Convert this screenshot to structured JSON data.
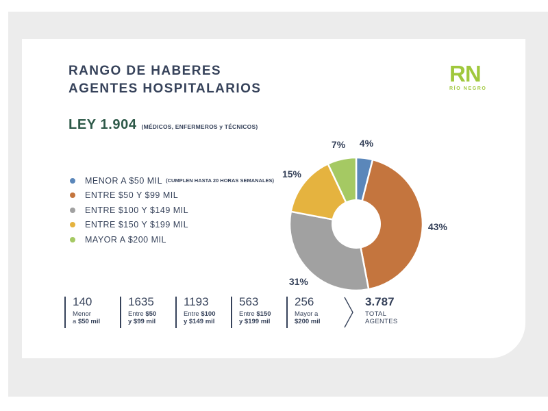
{
  "title": {
    "line1": "RANGO DE HABERES",
    "line2": "AGENTES HOSPITALARIOS"
  },
  "law": {
    "label": "LEY 1.904",
    "note": "(MÉDICOS, ENFERMEROS y TÉCNICOS)"
  },
  "logo": {
    "monogram": "RN",
    "caption": "RÍO NEGRO",
    "color": "#a0c83d"
  },
  "colors": {
    "navy_text": "#36425a",
    "law_green": "#2d5948",
    "panel_gray": "#ececec",
    "card_white": "#ffffff"
  },
  "legend": {
    "items": [
      {
        "label": "MENOR A $50 MIL",
        "note": "(CUMPLEN HASTA 20 HORAS SEMANALES)",
        "color": "#5b87ba"
      },
      {
        "label": "ENTRE $50 Y $99 MIL",
        "note": "",
        "color": "#c4753e"
      },
      {
        "label": "ENTRE $100 Y $149 MIL",
        "note": "",
        "color": "#a1a1a1"
      },
      {
        "label": "ENTRE $150 Y $199 MIL",
        "note": "",
        "color": "#e5b33f"
      },
      {
        "label": "MAYOR A $200 MIL",
        "note": "",
        "color": "#a5c963"
      }
    ]
  },
  "chart_data": {
    "type": "pie",
    "subtype": "donut",
    "title": "RANGO DE HABERES AGENTES HOSPITALARIOS — LEY 1.904",
    "categories": [
      "MENOR A $50 MIL",
      "ENTRE $50 Y $99 MIL",
      "ENTRE $100 Y $149 MIL",
      "ENTRE $150 Y $199 MIL",
      "MAYOR A $200 MIL"
    ],
    "values": [
      4,
      43,
      31,
      15,
      7
    ],
    "value_labels": [
      "4%",
      "43%",
      "31%",
      "15%",
      "7%"
    ],
    "counts": [
      140,
      1635,
      1193,
      563,
      256
    ],
    "total_agents": 3787,
    "colors": [
      "#5b87ba",
      "#c4753e",
      "#a1a1a1",
      "#e5b33f",
      "#a5c963"
    ],
    "start_angle_deg": 0,
    "direction": "clockwise",
    "donut_hole_ratio": 0.37,
    "legend_position": "left"
  },
  "stats": {
    "items": [
      {
        "value": "140",
        "lines": [
          {
            "pre": "Menor",
            "bold": ""
          },
          {
            "pre": "a ",
            "bold": "$50 mil"
          }
        ]
      },
      {
        "value": "1635",
        "lines": [
          {
            "pre": "Entre ",
            "bold": "$50"
          },
          {
            "pre": "",
            "bold": "y $99 mil"
          }
        ]
      },
      {
        "value": "1193",
        "lines": [
          {
            "pre": "Entre ",
            "bold": "$100"
          },
          {
            "pre": "",
            "bold": "y $149 mil"
          }
        ]
      },
      {
        "value": "563",
        "lines": [
          {
            "pre": "Entre ",
            "bold": "$150"
          },
          {
            "pre": "",
            "bold": "y $199 mil"
          }
        ]
      },
      {
        "value": "256",
        "lines": [
          {
            "pre": "Mayor a",
            "bold": ""
          },
          {
            "pre": "",
            "bold": "$200 mil"
          }
        ]
      }
    ],
    "total": {
      "value": "3.787",
      "line1": "TOTAL",
      "line2": "AGENTES"
    }
  }
}
